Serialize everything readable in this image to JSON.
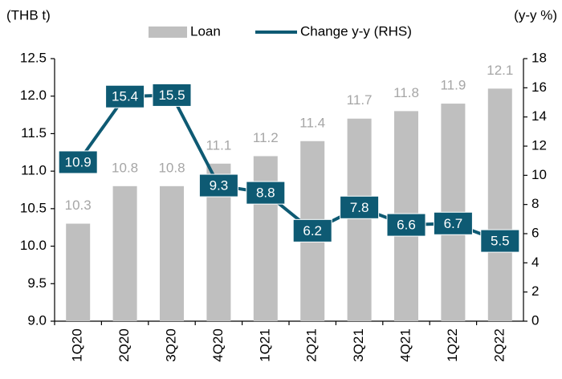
{
  "chart_data": {
    "type": "bar",
    "y_label": "(THB t)",
    "y2_label": "(y-y %)",
    "categories": [
      "1Q20",
      "2Q20",
      "3Q20",
      "4Q20",
      "1Q21",
      "2Q21",
      "3Q21",
      "4Q21",
      "1Q22",
      "2Q22"
    ],
    "series": [
      {
        "name": "Loan",
        "type": "bar",
        "color": "#bfbfbf",
        "values": [
          10.3,
          10.8,
          10.8,
          11.1,
          11.2,
          11.4,
          11.7,
          11.8,
          11.9,
          12.1
        ]
      },
      {
        "name": "Change y-y (RHS)",
        "type": "line",
        "axis": "y2",
        "color": "#0e5a73",
        "values": [
          10.9,
          15.4,
          15.5,
          9.3,
          8.8,
          6.2,
          7.8,
          6.6,
          6.7,
          5.5
        ]
      }
    ],
    "ylim": [
      9,
      12.5
    ],
    "yticks": [
      {
        "value": 9,
        "label": "9.0"
      },
      9.5,
      {
        "value": 10,
        "label": "10.0"
      },
      10.5,
      {
        "value": 11,
        "label": "11.0"
      },
      11.5,
      {
        "value": 12,
        "label": "12.0"
      },
      12.5
    ],
    "y2lim": [
      0,
      18
    ],
    "y2ticks": [
      0,
      2,
      4,
      6,
      8,
      10,
      12,
      14,
      16,
      18
    ],
    "legend": "top",
    "grid": false
  }
}
